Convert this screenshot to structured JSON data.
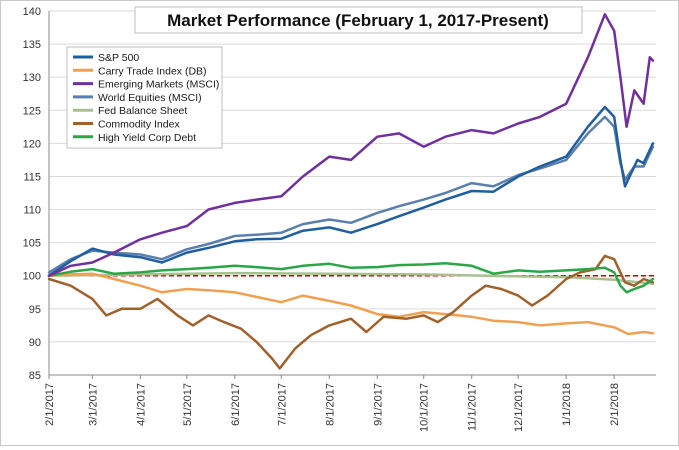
{
  "chart_data": {
    "type": "line",
    "title": "Market Performance (February 1, 2017-Present)",
    "xlabel": "",
    "ylabel": "",
    "ylim": [
      85,
      140
    ],
    "yticks": [
      85,
      90,
      95,
      100,
      105,
      110,
      115,
      120,
      125,
      130,
      135,
      140
    ],
    "xlim": [
      "2017-02-01",
      "2018-02-28"
    ],
    "x_tick_labels": [
      "2/1/2017",
      "3/1/2017",
      "4/1/2017",
      "5/1/2017",
      "6/1/2017",
      "7/1/2017",
      "8/1/2017",
      "9/1/2017",
      "10/1/2017",
      "11/1/2017",
      "12/1/2017",
      "1/1/2018",
      "2/1/2018"
    ],
    "grid": true,
    "legend_position": "top-left",
    "reference_line": {
      "y": 100,
      "color": "#c00000",
      "style": "dashed"
    },
    "series": [
      {
        "name": "S&P 500",
        "color": "#1f5fa0",
        "points": [
          [
            "2017-02-01",
            100
          ],
          [
            "2017-02-15",
            102.2
          ],
          [
            "2017-03-01",
            104.1
          ],
          [
            "2017-03-15",
            103.2
          ],
          [
            "2017-04-01",
            102.8
          ],
          [
            "2017-04-15",
            102
          ],
          [
            "2017-05-01",
            103.5
          ],
          [
            "2017-05-15",
            104.2
          ],
          [
            "2017-06-01",
            105.2
          ],
          [
            "2017-06-15",
            105.5
          ],
          [
            "2017-07-01",
            105.6
          ],
          [
            "2017-07-15",
            106.8
          ],
          [
            "2017-08-01",
            107.3
          ],
          [
            "2017-08-15",
            106.5
          ],
          [
            "2017-09-01",
            107.8
          ],
          [
            "2017-09-15",
            109
          ],
          [
            "2017-10-01",
            110.3
          ],
          [
            "2017-10-15",
            111.5
          ],
          [
            "2017-11-01",
            112.8
          ],
          [
            "2017-11-15",
            112.7
          ],
          [
            "2017-12-01",
            115
          ],
          [
            "2017-12-15",
            116.5
          ],
          [
            "2018-01-01",
            118
          ],
          [
            "2018-01-15",
            122.5
          ],
          [
            "2018-01-26",
            125.5
          ],
          [
            "2018-02-01",
            124
          ],
          [
            "2018-02-05",
            117.5
          ],
          [
            "2018-02-08",
            113.5
          ],
          [
            "2018-02-12",
            115.5
          ],
          [
            "2018-02-16",
            117.5
          ],
          [
            "2018-02-20",
            117
          ],
          [
            "2018-02-26",
            120
          ]
        ]
      },
      {
        "name": "Carry Trade Index (DB)",
        "color": "#f0a050",
        "points": [
          [
            "2017-02-01",
            100
          ],
          [
            "2017-02-15",
            100.2
          ],
          [
            "2017-03-01",
            100.3
          ],
          [
            "2017-03-15",
            99.5
          ],
          [
            "2017-04-01",
            98.5
          ],
          [
            "2017-04-15",
            97.5
          ],
          [
            "2017-05-01",
            98
          ],
          [
            "2017-05-15",
            97.8
          ],
          [
            "2017-06-01",
            97.5
          ],
          [
            "2017-06-15",
            96.8
          ],
          [
            "2017-07-01",
            96
          ],
          [
            "2017-07-15",
            97
          ],
          [
            "2017-08-01",
            96.2
          ],
          [
            "2017-08-15",
            95.5
          ],
          [
            "2017-09-01",
            94.2
          ],
          [
            "2017-09-15",
            93.8
          ],
          [
            "2017-10-01",
            94.5
          ],
          [
            "2017-10-15",
            94.2
          ],
          [
            "2017-11-01",
            93.8
          ],
          [
            "2017-11-15",
            93.2
          ],
          [
            "2017-12-01",
            93
          ],
          [
            "2017-12-15",
            92.5
          ],
          [
            "2018-01-01",
            92.8
          ],
          [
            "2018-01-15",
            93
          ],
          [
            "2018-02-01",
            92.2
          ],
          [
            "2018-02-10",
            91.2
          ],
          [
            "2018-02-20",
            91.5
          ],
          [
            "2018-02-26",
            91.3
          ]
        ]
      },
      {
        "name": "Emerging Markets (MSCI)",
        "color": "#7030a0",
        "points": [
          [
            "2017-02-01",
            100
          ],
          [
            "2017-02-15",
            101.5
          ],
          [
            "2017-03-01",
            102
          ],
          [
            "2017-03-15",
            103.5
          ],
          [
            "2017-04-01",
            105.5
          ],
          [
            "2017-04-15",
            106.5
          ],
          [
            "2017-05-01",
            107.5
          ],
          [
            "2017-05-15",
            110
          ],
          [
            "2017-06-01",
            111
          ],
          [
            "2017-06-15",
            111.5
          ],
          [
            "2017-07-01",
            112
          ],
          [
            "2017-07-15",
            115
          ],
          [
            "2017-08-01",
            118
          ],
          [
            "2017-08-15",
            117.5
          ],
          [
            "2017-09-01",
            121
          ],
          [
            "2017-09-15",
            121.5
          ],
          [
            "2017-10-01",
            119.5
          ],
          [
            "2017-10-15",
            121
          ],
          [
            "2017-11-01",
            122
          ],
          [
            "2017-11-15",
            121.5
          ],
          [
            "2017-12-01",
            123
          ],
          [
            "2017-12-15",
            124
          ],
          [
            "2018-01-01",
            126
          ],
          [
            "2018-01-15",
            133
          ],
          [
            "2018-01-26",
            139.5
          ],
          [
            "2018-02-01",
            137
          ],
          [
            "2018-02-05",
            130
          ],
          [
            "2018-02-09",
            122.5
          ],
          [
            "2018-02-14",
            128
          ],
          [
            "2018-02-20",
            126
          ],
          [
            "2018-02-24",
            133
          ],
          [
            "2018-02-26",
            132.5
          ]
        ]
      },
      {
        "name": "World Equities (MSCI)",
        "color": "#5a7fae",
        "points": [
          [
            "2017-02-01",
            100.5
          ],
          [
            "2017-02-15",
            102.5
          ],
          [
            "2017-03-01",
            103.8
          ],
          [
            "2017-03-15",
            103.5
          ],
          [
            "2017-04-01",
            103.2
          ],
          [
            "2017-04-15",
            102.5
          ],
          [
            "2017-05-01",
            104
          ],
          [
            "2017-05-15",
            104.8
          ],
          [
            "2017-06-01",
            106
          ],
          [
            "2017-06-15",
            106.2
          ],
          [
            "2017-07-01",
            106.5
          ],
          [
            "2017-07-15",
            107.8
          ],
          [
            "2017-08-01",
            108.5
          ],
          [
            "2017-08-15",
            108
          ],
          [
            "2017-09-01",
            109.5
          ],
          [
            "2017-09-15",
            110.5
          ],
          [
            "2017-10-01",
            111.5
          ],
          [
            "2017-10-15",
            112.5
          ],
          [
            "2017-11-01",
            114
          ],
          [
            "2017-11-15",
            113.5
          ],
          [
            "2017-12-01",
            115.2
          ],
          [
            "2017-12-15",
            116.2
          ],
          [
            "2018-01-01",
            117.5
          ],
          [
            "2018-01-15",
            121.5
          ],
          [
            "2018-01-26",
            124
          ],
          [
            "2018-02-01",
            122.5
          ],
          [
            "2018-02-05",
            117
          ],
          [
            "2018-02-08",
            114.5
          ],
          [
            "2018-02-14",
            116.5
          ],
          [
            "2018-02-20",
            116.5
          ],
          [
            "2018-02-26",
            119.5
          ]
        ]
      },
      {
        "name": "Fed Balance Sheet",
        "color": "#a8c090",
        "points": [
          [
            "2017-02-01",
            100
          ],
          [
            "2017-04-01",
            100.2
          ],
          [
            "2017-06-01",
            100.4
          ],
          [
            "2017-08-01",
            100.3
          ],
          [
            "2017-10-01",
            100.2
          ],
          [
            "2017-12-01",
            99.9
          ],
          [
            "2018-01-01",
            99.8
          ],
          [
            "2018-02-01",
            99.4
          ],
          [
            "2018-02-26",
            98.8
          ]
        ]
      },
      {
        "name": "Commodity Index",
        "color": "#a0622d",
        "points": [
          [
            "2017-02-01",
            99.5
          ],
          [
            "2017-02-15",
            98.5
          ],
          [
            "2017-03-01",
            96.5
          ],
          [
            "2017-03-10",
            94
          ],
          [
            "2017-03-20",
            95
          ],
          [
            "2017-04-01",
            95
          ],
          [
            "2017-04-12",
            96.5
          ],
          [
            "2017-04-25",
            94
          ],
          [
            "2017-05-05",
            92.5
          ],
          [
            "2017-05-15",
            94
          ],
          [
            "2017-05-25",
            93
          ],
          [
            "2017-06-05",
            92
          ],
          [
            "2017-06-15",
            90
          ],
          [
            "2017-06-25",
            87.5
          ],
          [
            "2017-06-30",
            86
          ],
          [
            "2017-07-10",
            89
          ],
          [
            "2017-07-20",
            91
          ],
          [
            "2017-08-01",
            92.5
          ],
          [
            "2017-08-15",
            93.5
          ],
          [
            "2017-08-25",
            91.5
          ],
          [
            "2017-09-05",
            93.8
          ],
          [
            "2017-09-20",
            93.5
          ],
          [
            "2017-10-01",
            94
          ],
          [
            "2017-10-10",
            93
          ],
          [
            "2017-10-20",
            94.5
          ],
          [
            "2017-11-01",
            97
          ],
          [
            "2017-11-10",
            98.5
          ],
          [
            "2017-11-20",
            98
          ],
          [
            "2017-12-01",
            97
          ],
          [
            "2017-12-10",
            95.5
          ],
          [
            "2017-12-20",
            97
          ],
          [
            "2018-01-01",
            99.5
          ],
          [
            "2018-01-10",
            100.5
          ],
          [
            "2018-01-20",
            101
          ],
          [
            "2018-01-26",
            103
          ],
          [
            "2018-02-01",
            102.5
          ],
          [
            "2018-02-08",
            99
          ],
          [
            "2018-02-14",
            98.5
          ],
          [
            "2018-02-20",
            99.5
          ],
          [
            "2018-02-26",
            99
          ]
        ]
      },
      {
        "name": "High Yield Corp Debt",
        "color": "#2aa648",
        "points": [
          [
            "2017-02-01",
            100
          ],
          [
            "2017-02-15",
            100.6
          ],
          [
            "2017-03-01",
            101
          ],
          [
            "2017-03-15",
            100.3
          ],
          [
            "2017-04-01",
            100.5
          ],
          [
            "2017-04-15",
            100.8
          ],
          [
            "2017-05-01",
            101
          ],
          [
            "2017-05-15",
            101.2
          ],
          [
            "2017-06-01",
            101.5
          ],
          [
            "2017-06-15",
            101.3
          ],
          [
            "2017-07-01",
            101
          ],
          [
            "2017-07-15",
            101.5
          ],
          [
            "2017-08-01",
            101.8
          ],
          [
            "2017-08-15",
            101.2
          ],
          [
            "2017-09-01",
            101.3
          ],
          [
            "2017-09-15",
            101.6
          ],
          [
            "2017-10-01",
            101.7
          ],
          [
            "2017-10-15",
            101.9
          ],
          [
            "2017-11-01",
            101.5
          ],
          [
            "2017-11-15",
            100.3
          ],
          [
            "2017-12-01",
            100.8
          ],
          [
            "2017-12-15",
            100.6
          ],
          [
            "2018-01-01",
            100.8
          ],
          [
            "2018-01-15",
            101
          ],
          [
            "2018-01-26",
            101.2
          ],
          [
            "2018-02-01",
            100.5
          ],
          [
            "2018-02-05",
            98.5
          ],
          [
            "2018-02-09",
            97.5
          ],
          [
            "2018-02-14",
            98
          ],
          [
            "2018-02-20",
            98.5
          ],
          [
            "2018-02-26",
            99.5
          ]
        ]
      }
    ]
  }
}
